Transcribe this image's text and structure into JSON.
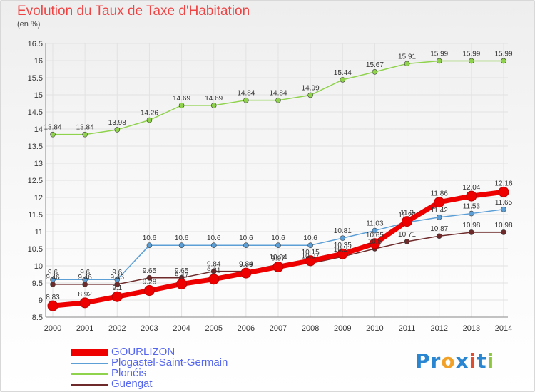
{
  "header": {
    "title": "Evolution du Taux de Taxe d'Habitation",
    "unit": "(en %)"
  },
  "logo": {
    "text": "Proxiti",
    "letters": [
      {
        "ch": "P",
        "color": "#2a86d1"
      },
      {
        "ch": "r",
        "color": "#2a86d1"
      },
      {
        "ch": "o",
        "color": "#f2a128"
      },
      {
        "ch": "x",
        "color": "#2a86d1"
      },
      {
        "ch": "i",
        "color": "#e34d2f"
      },
      {
        "ch": "t",
        "color": "#2a86d1"
      },
      {
        "ch": "i",
        "color": "#8cc63f"
      }
    ]
  },
  "chart_data": {
    "type": "line",
    "title": "Evolution du Taux de Taxe d'Habitation",
    "ylabel": "(en %)",
    "xlabel": "",
    "x": [
      "2000",
      "2001",
      "2002",
      "2003",
      "2004",
      "2005",
      "2006",
      "2007",
      "2008",
      "2009",
      "2010",
      "2011",
      "2012",
      "2013",
      "2014"
    ],
    "ylim": [
      8.5,
      16.5
    ],
    "yticks": [
      "8.5",
      "9",
      "9.5",
      "10",
      "10.5",
      "11",
      "11.5",
      "12",
      "12.5",
      "13",
      "13.5",
      "14",
      "14.5",
      "15",
      "15.5",
      "16",
      "16.5"
    ],
    "grid": true,
    "legend": "bottom-left",
    "series": [
      {
        "name": "GOURLIZON",
        "color": "#ee0000",
        "width": 7,
        "marker": 7,
        "values": [
          8.83,
          8.92,
          9.1,
          9.28,
          9.47,
          9.61,
          9.79,
          9.97,
          10.15,
          10.35,
          10.65,
          11.3,
          11.86,
          12.04,
          12.16
        ],
        "labels": [
          "8.83",
          "8.92",
          "9.1",
          "9.28",
          "9.47",
          "9.61",
          "9.79",
          "9.97",
          "10.15",
          "10.35",
          "10.65",
          "11.3",
          "11.86",
          "12.04",
          "12.16"
        ]
      },
      {
        "name": "Plogastel-Saint-Germain",
        "color": "#5c9fd6",
        "width": 1.5,
        "marker": 3.5,
        "values": [
          9.6,
          9.6,
          9.6,
          10.6,
          10.6,
          10.6,
          10.6,
          10.6,
          10.6,
          10.81,
          11.03,
          11.27,
          11.42,
          11.53,
          11.65
        ],
        "labels": [
          "9.6",
          "9.6",
          "9.6",
          "10.6",
          "10.6",
          "10.6",
          "10.6",
          "10.6",
          "10.6",
          "10.81",
          "11.03",
          "11.27",
          "11.42",
          "11.53",
          "11.65"
        ]
      },
      {
        "name": "Plonéis",
        "color": "#8fd24c",
        "width": 1.5,
        "marker": 3.5,
        "values": [
          13.84,
          13.84,
          13.98,
          14.26,
          14.69,
          14.69,
          14.84,
          14.84,
          14.99,
          15.44,
          15.67,
          15.91,
          15.99,
          15.99,
          15.99
        ],
        "labels": [
          "13.84",
          "13.84",
          "13.98",
          "14.26",
          "14.69",
          "14.69",
          "14.84",
          "14.84",
          "14.99",
          "15.44",
          "15.67",
          "15.91",
          "15.99",
          "15.99",
          "15.99"
        ]
      },
      {
        "name": "Guengat",
        "color": "#6e2a2a",
        "width": 1.5,
        "marker": 3.5,
        "values": [
          9.46,
          9.46,
          9.46,
          9.65,
          9.65,
          9.84,
          9.84,
          10.04,
          10.07,
          10.27,
          10.5,
          10.71,
          10.87,
          10.98,
          10.98
        ],
        "labels": [
          "9.46",
          "9.46",
          "9.46",
          "9.65",
          "9.65",
          "9.84",
          "9.84",
          "10.04",
          "10.07",
          "10.27",
          "10.5",
          "10.71",
          "10.87",
          "10.98",
          "10.98"
        ]
      }
    ]
  }
}
